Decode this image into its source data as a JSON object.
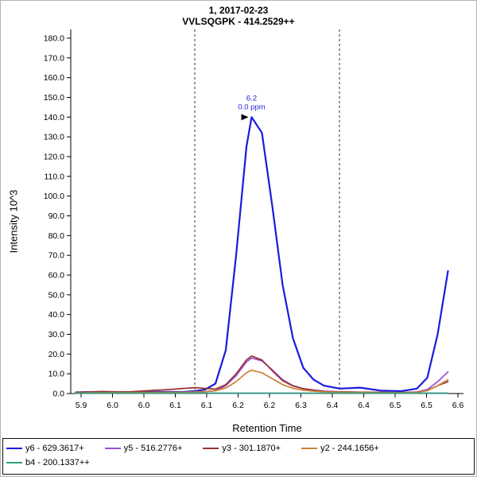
{
  "title": {
    "line1": "1, 2017-02-23",
    "line2": "VVLSQGPK - 414.2529++"
  },
  "chart_data": {
    "type": "line",
    "title": "1, 2017-02-23",
    "subtitle": "VVLSQGPK - 414.2529++",
    "xlabel": "Retention Time",
    "ylabel": "Intensity 10^3",
    "xlim": [
      5.84,
      6.6
    ],
    "ylim": [
      0,
      186
    ],
    "y_max_tick": 180,
    "y_tick_labels": [
      "0.0",
      "10.0",
      "20.0",
      "30.0",
      "40.0",
      "50.0",
      "60.0",
      "70.0",
      "80.0",
      "90.0",
      "100.0",
      "110.0",
      "120.0",
      "130.0",
      "140.0",
      "150.0",
      "160.0",
      "170.0",
      "180.0"
    ],
    "x_tick_labels": [
      "5.9",
      "6.0",
      "6.0",
      "6.1",
      "6.1",
      "6.2",
      "6.2",
      "6.3",
      "6.4",
      "6.4",
      "6.5",
      "6.5",
      "6.6"
    ],
    "boundaries": [
      6.08,
      6.36
    ],
    "boundary_style": "dashed",
    "grid": false,
    "legend_position": "bottom",
    "annotation": {
      "x": 6.19,
      "y": 140,
      "time_label": "6.2",
      "ppm_label": "0.0 ppm",
      "color": "#1a1ae0"
    },
    "x": [
      5.85,
      5.9,
      5.95,
      6.0,
      6.03,
      6.06,
      6.08,
      6.1,
      6.12,
      6.14,
      6.16,
      6.18,
      6.19,
      6.21,
      6.23,
      6.25,
      6.27,
      6.29,
      6.31,
      6.33,
      6.36,
      6.4,
      6.44,
      6.48,
      6.51,
      6.53,
      6.55,
      6.57
    ],
    "series": [
      {
        "name": "y6 - 629.3617+",
        "color": "#1a1ae0",
        "width": 2.2,
        "values": [
          0.6,
          0.9,
          0.6,
          0.9,
          0.8,
          0.9,
          1.2,
          2.0,
          5,
          22,
          70,
          125,
          140,
          132,
          95,
          55,
          28,
          13,
          7,
          4,
          2.5,
          3,
          1.5,
          1.2,
          2.5,
          8,
          30,
          62
        ]
      },
      {
        "name": "y5 - 516.2776+",
        "color": "#9a4fd3",
        "width": 1.7,
        "values": [
          0.3,
          0.4,
          0.3,
          0.5,
          0.5,
          0.6,
          0.7,
          0.9,
          1.5,
          4,
          9,
          16,
          18,
          16.5,
          12,
          7,
          4,
          2.5,
          1.8,
          1.2,
          0.9,
          0.7,
          0.6,
          0.5,
          0.8,
          2,
          6,
          11
        ]
      },
      {
        "name": "y3 - 301.1870+",
        "color": "#993333",
        "width": 1.7,
        "values": [
          0.6,
          1.0,
          0.8,
          1.6,
          2.0,
          2.6,
          3.0,
          2.6,
          2.2,
          4.5,
          10,
          17,
          19,
          17,
          11.5,
          6.5,
          3.8,
          2.4,
          1.6,
          1.1,
          0.9,
          0.7,
          0.6,
          0.5,
          0.7,
          1.5,
          4,
          6
        ]
      },
      {
        "name": "y2 - 244.1656+",
        "color": "#c98136",
        "width": 1.7,
        "values": [
          0.3,
          0.5,
          0.4,
          0.6,
          0.6,
          0.7,
          0.8,
          1.0,
          1.4,
          2.8,
          6,
          10.5,
          11.8,
          10.5,
          7.5,
          4.5,
          2.6,
          1.7,
          1.2,
          0.9,
          0.7,
          0.5,
          0.4,
          0.4,
          0.6,
          1.5,
          4,
          7
        ]
      },
      {
        "name": "b4 - 200.1337++",
        "color": "#2f9e84",
        "width": 1.7,
        "values": [
          0.2,
          0.2,
          0.2,
          0.2,
          0.2,
          0.2,
          0.2,
          0.2,
          0.2,
          0.2,
          0.2,
          0.2,
          0.2,
          0.2,
          0.2,
          0.2,
          0.2,
          0.2,
          0.2,
          0.2,
          0.2,
          0.2,
          0.2,
          0.2,
          0.2,
          0.2,
          0.2,
          0.2
        ]
      }
    ]
  }
}
